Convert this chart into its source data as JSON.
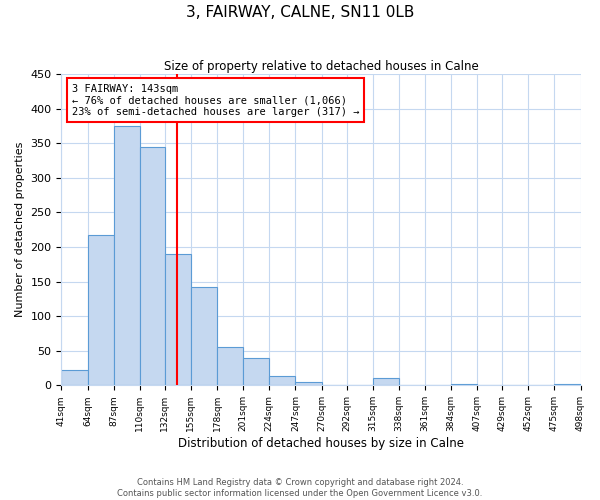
{
  "title": "3, FAIRWAY, CALNE, SN11 0LB",
  "subtitle": "Size of property relative to detached houses in Calne",
  "bar_edges": [
    41,
    64,
    87,
    110,
    132,
    155,
    178,
    201,
    224,
    247,
    270,
    292,
    315,
    338,
    361,
    384,
    407,
    429,
    452,
    475,
    498
  ],
  "bar_heights": [
    22,
    217,
    375,
    345,
    190,
    142,
    55,
    39,
    13,
    5,
    0,
    0,
    10,
    0,
    0,
    2,
    0,
    0,
    0,
    2
  ],
  "bar_color": "#c5d8f0",
  "bar_edge_color": "#5b9bd5",
  "property_size": 143,
  "vline_color": "red",
  "annotation_line1": "3 FAIRWAY: 143sqm",
  "annotation_line2": "← 76% of detached houses are smaller (1,066)",
  "annotation_line3": "23% of semi-detached houses are larger (317) →",
  "xlabel": "Distribution of detached houses by size in Calne",
  "ylabel": "Number of detached properties",
  "ylim": [
    0,
    450
  ],
  "yticks": [
    0,
    50,
    100,
    150,
    200,
    250,
    300,
    350,
    400,
    450
  ],
  "tick_labels": [
    "41sqm",
    "64sqm",
    "87sqm",
    "110sqm",
    "132sqm",
    "155sqm",
    "178sqm",
    "201sqm",
    "224sqm",
    "247sqm",
    "270sqm",
    "292sqm",
    "315sqm",
    "338sqm",
    "361sqm",
    "384sqm",
    "407sqm",
    "429sqm",
    "452sqm",
    "475sqm",
    "498sqm"
  ],
  "footer_text": "Contains HM Land Registry data © Crown copyright and database right 2024.\nContains public sector information licensed under the Open Government Licence v3.0.",
  "bg_color": "#ffffff",
  "grid_color": "#c5d8f0"
}
